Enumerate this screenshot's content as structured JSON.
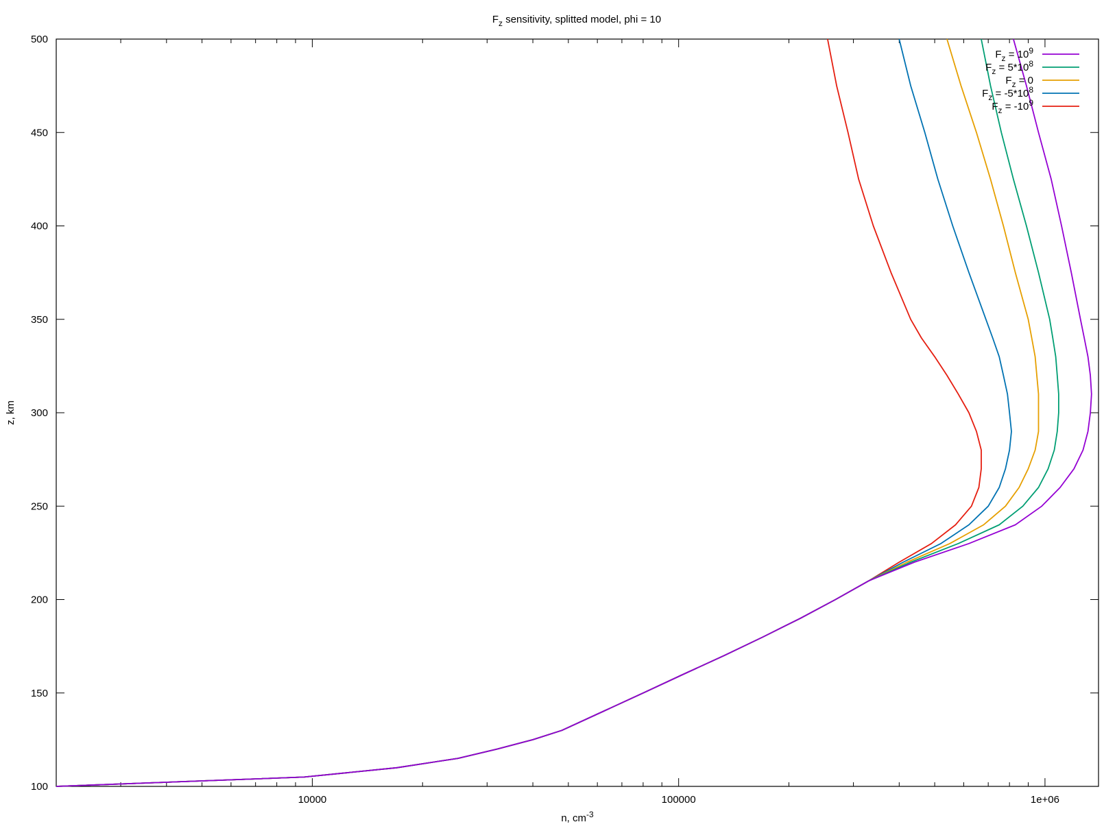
{
  "chart_data": {
    "type": "line",
    "title": {
      "main": "F",
      "sub": "z",
      "rest": " sensitivity, splitted model, phi = 10"
    },
    "xlabel": {
      "main": "n, cm",
      "sup": "-3"
    },
    "ylabel": "z, km",
    "x_scale": "log",
    "xlim": [
      2000,
      1400000
    ],
    "ylim": [
      100,
      500
    ],
    "x_ticks": [
      10000,
      100000,
      1000000
    ],
    "x_tick_labels": [
      "10000",
      "100000",
      "1e+06"
    ],
    "y_ticks": [
      100,
      150,
      200,
      250,
      300,
      350,
      400,
      450,
      500
    ],
    "y_tick_labels": [
      "100",
      "150",
      "200",
      "250",
      "300",
      "350",
      "400",
      "450",
      "500"
    ],
    "grid": false,
    "legend_position": "top-right",
    "shared_lower": {
      "z": [
        100,
        105,
        110,
        115,
        120,
        125,
        130,
        140,
        150,
        160,
        170,
        180,
        190,
        200,
        210
      ],
      "n": [
        2000,
        9500,
        17000,
        25000,
        32000,
        40000,
        48000,
        62000,
        80000,
        103000,
        133000,
        170000,
        215000,
        268000,
        330000
      ]
    },
    "series": [
      {
        "name": {
          "main": "F",
          "sub": "z",
          "mid": " = 10",
          "sup": "9"
        },
        "color": "#9400d3",
        "z": [
          210,
          220,
          230,
          240,
          250,
          260,
          270,
          280,
          290,
          300,
          310,
          320,
          330,
          340,
          350,
          375,
          400,
          425,
          450,
          475,
          500
        ],
        "n": [
          330000,
          440000,
          620000,
          830000,
          980000,
          1100000,
          1200000,
          1270000,
          1310000,
          1330000,
          1340000,
          1330000,
          1310000,
          1280000,
          1250000,
          1180000,
          1110000,
          1040000,
          960000,
          890000,
          820000
        ]
      },
      {
        "name": {
          "main": "F",
          "sub": "z",
          "mid": " = 5*10",
          "sup": "8"
        },
        "color": "#009e73",
        "z": [
          210,
          220,
          230,
          240,
          250,
          260,
          270,
          280,
          290,
          300,
          310,
          320,
          330,
          340,
          350,
          375,
          400,
          425,
          450,
          475,
          500
        ],
        "n": [
          330000,
          430000,
          580000,
          750000,
          870000,
          960000,
          1020000,
          1060000,
          1080000,
          1090000,
          1090000,
          1080000,
          1070000,
          1050000,
          1030000,
          960000,
          890000,
          820000,
          760000,
          710000,
          670000
        ]
      },
      {
        "name": {
          "main": "F",
          "sub": "z",
          "mid": " = 0",
          "sup": ""
        },
        "color": "#e69f00",
        "z": [
          210,
          220,
          230,
          240,
          250,
          260,
          270,
          280,
          290,
          300,
          310,
          320,
          330,
          340,
          350,
          375,
          400,
          425,
          450,
          475,
          500
        ],
        "n": [
          330000,
          420000,
          550000,
          680000,
          780000,
          850000,
          900000,
          940000,
          960000,
          960000,
          960000,
          950000,
          940000,
          920000,
          900000,
          830000,
          770000,
          710000,
          650000,
          590000,
          540000
        ]
      },
      {
        "name": {
          "main": "F",
          "sub": "z",
          "mid": " = -5*10",
          "sup": "8"
        },
        "color": "#0072b2",
        "z": [
          210,
          220,
          230,
          240,
          250,
          260,
          270,
          280,
          290,
          300,
          310,
          320,
          330,
          340,
          350,
          375,
          400,
          425,
          450,
          475,
          500
        ],
        "n": [
          330000,
          410000,
          520000,
          620000,
          700000,
          750000,
          780000,
          800000,
          810000,
          800000,
          790000,
          770000,
          750000,
          720000,
          690000,
          620000,
          560000,
          510000,
          470000,
          430000,
          400000
        ]
      },
      {
        "name": {
          "main": "F",
          "sub": "z",
          "mid": " = -10",
          "sup": "9"
        },
        "color": "#e51e10",
        "z": [
          210,
          220,
          230,
          240,
          250,
          260,
          270,
          280,
          290,
          300,
          310,
          320,
          330,
          340,
          350,
          375,
          400,
          425,
          450,
          475,
          500
        ],
        "n": [
          330000,
          400000,
          490000,
          570000,
          630000,
          660000,
          670000,
          670000,
          650000,
          620000,
          580000,
          540000,
          500000,
          460000,
          430000,
          380000,
          340000,
          310000,
          290000,
          270000,
          255000
        ]
      }
    ]
  }
}
